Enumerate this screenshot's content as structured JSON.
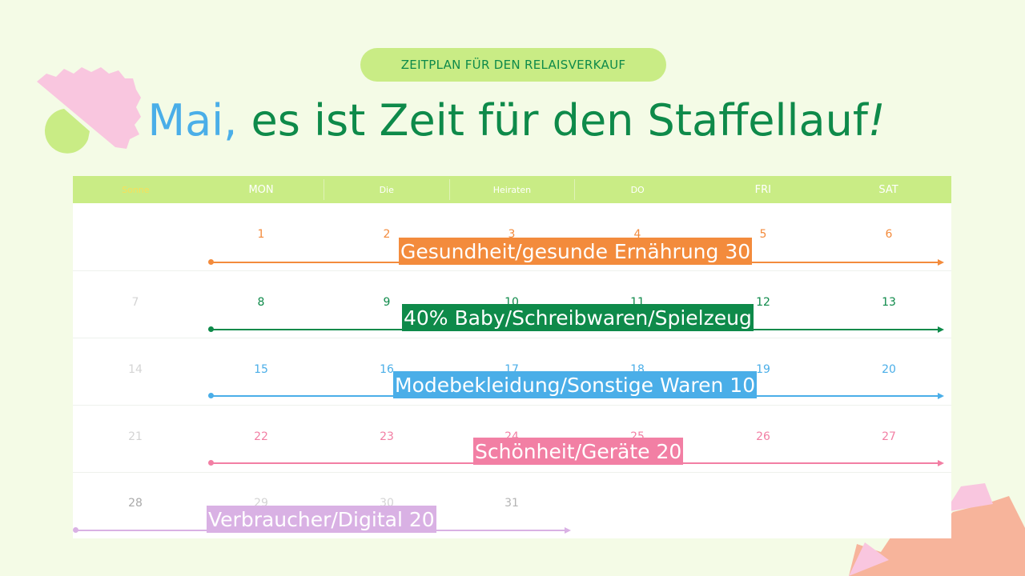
{
  "header_pill": "ZEITPLAN FÜR DEN RELAISVERKAUF",
  "title": {
    "highlight": "Mai,",
    "rest": " es ist Zeit für den Staffellauf",
    "exclaim": "!"
  },
  "weekdays": [
    "Sonne",
    "MON",
    "Die",
    "Heiraten",
    "DO",
    "FRI",
    "SAT"
  ],
  "weeks": [
    {
      "days": [
        "",
        "1",
        "2",
        "3",
        "4",
        "5",
        "6"
      ],
      "color": "#f38b3c",
      "label": "Gesundheit/gesunde Ernährung 30"
    },
    {
      "days": [
        "7",
        "8",
        "9",
        "10",
        "11",
        "12",
        "13"
      ],
      "color": "#0e8a4a",
      "label": "40% Baby/Schreibwaren/Spielzeug"
    },
    {
      "days": [
        "14",
        "15",
        "16",
        "17",
        "18",
        "19",
        "20"
      ],
      "color": "#4aaee8",
      "label": "Modebekleidung/Sonstige Waren 10"
    },
    {
      "days": [
        "21",
        "22",
        "23",
        "24",
        "25",
        "26",
        "27"
      ],
      "color": "#f27fa4",
      "label": "Schönheit/Geräte 20"
    },
    {
      "days": [
        "28",
        "29",
        "30",
        "31",
        "",
        "",
        ""
      ],
      "color": "#d9b1e4",
      "label": "Verbraucher/Digital 20"
    }
  ],
  "colors": {
    "background": "#f4fbe6",
    "header_green": "#c9ec85",
    "title_green": "#0e8a4a",
    "title_blue": "#4aaee8"
  }
}
